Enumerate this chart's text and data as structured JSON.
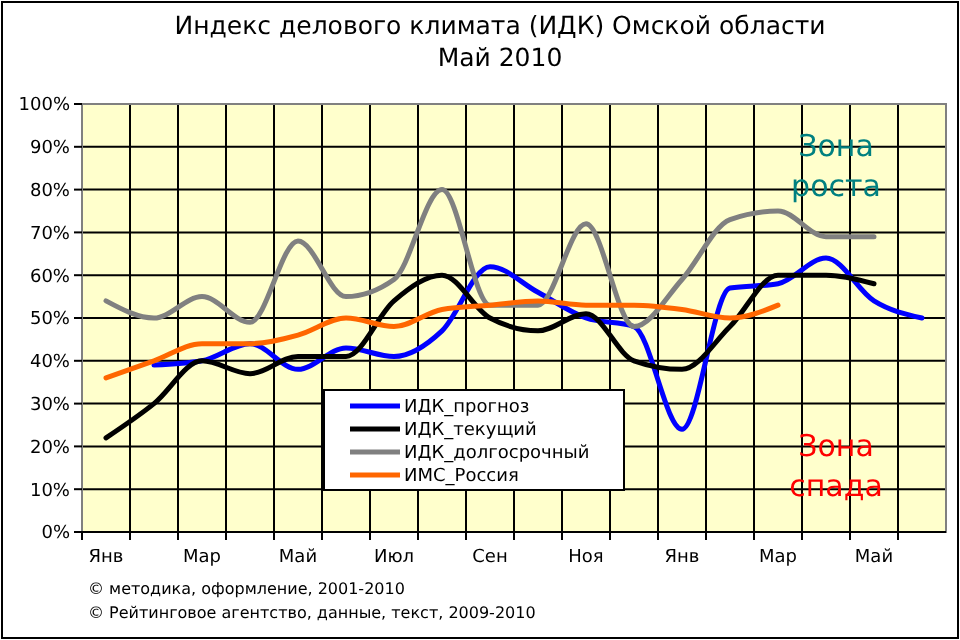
{
  "chart_data": {
    "type": "line",
    "title": "Индекс делового климата (ИДК) Омской области",
    "subtitle": "Май 2010",
    "categories": [
      "Янв",
      null,
      "Мар",
      null,
      "Май",
      null,
      "Июл",
      null,
      "Сен",
      null,
      "Ноя",
      null,
      "Янв",
      null,
      "Мар",
      null,
      "Май",
      null
    ],
    "series": [
      {
        "name": "ИДК_прогноз",
        "color": "#0000ff",
        "values": [
          null,
          39,
          40,
          44,
          38,
          43,
          41,
          47,
          62,
          56,
          50,
          48,
          24,
          57,
          58,
          64,
          54,
          50
        ]
      },
      {
        "name": "ИДК_текущий",
        "color": "#000000",
        "values": [
          22,
          30,
          40,
          37,
          41,
          41,
          54,
          60,
          50,
          47,
          51,
          40,
          38,
          48,
          60,
          60,
          58,
          null
        ]
      },
      {
        "name": "ИДК_долгосрочный",
        "color": "#808080",
        "values": [
          54,
          50,
          55,
          49,
          68,
          55,
          59,
          80,
          53,
          53,
          72,
          48,
          59,
          73,
          75,
          69,
          69,
          null
        ]
      },
      {
        "name": "ИМС_Россия",
        "color": "#ff6600",
        "values": [
          36,
          40,
          44,
          44,
          46,
          50,
          48,
          52,
          53,
          54,
          53,
          53,
          52,
          50,
          53,
          null,
          null,
          null
        ]
      }
    ],
    "ylim": [
      0,
      100
    ],
    "yticks": [
      {
        "value": 0,
        "label": "0%"
      },
      {
        "value": 10,
        "label": "10%"
      },
      {
        "value": 20,
        "label": "20%"
      },
      {
        "value": 30,
        "label": "30%"
      },
      {
        "value": 40,
        "label": "40%"
      },
      {
        "value": 50,
        "label": "50%"
      },
      {
        "value": 60,
        "label": "60%"
      },
      {
        "value": 70,
        "label": "70%"
      },
      {
        "value": 80,
        "label": "80%"
      },
      {
        "value": 90,
        "label": "90%"
      },
      {
        "value": 100,
        "label": "100%"
      }
    ],
    "grid": true,
    "legend": "bottom",
    "marker": "none",
    "line_style": "solid",
    "annotations": [
      "Зона роста",
      "Зона спада",
      "© методика, оформление, 2001-2010",
      "© Рейтинговое агентство, данные, текст, 2009-2010"
    ]
  }
}
